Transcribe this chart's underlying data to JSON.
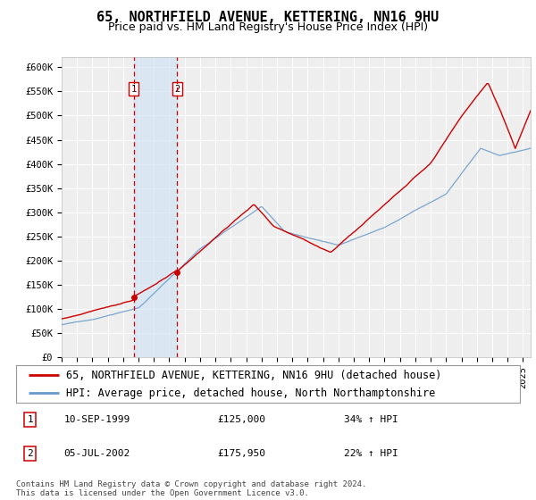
{
  "title": "65, NORTHFIELD AVENUE, KETTERING, NN16 9HU",
  "subtitle": "Price paid vs. HM Land Registry's House Price Index (HPI)",
  "ylim": [
    0,
    620000
  ],
  "yticks": [
    0,
    50000,
    100000,
    150000,
    200000,
    250000,
    300000,
    350000,
    400000,
    450000,
    500000,
    550000,
    600000
  ],
  "ytick_labels": [
    "£0",
    "£50K",
    "£100K",
    "£150K",
    "£200K",
    "£250K",
    "£300K",
    "£350K",
    "£400K",
    "£450K",
    "£500K",
    "£550K",
    "£600K"
  ],
  "background_color": "#ffffff",
  "plot_bg_color": "#eeeeee",
  "grid_color": "#ffffff",
  "legend_entries": [
    "65, NORTHFIELD AVENUE, KETTERING, NN16 9HU (detached house)",
    "HPI: Average price, detached house, North Northamptonshire"
  ],
  "legend_colors": [
    "#cc0000",
    "#6699cc"
  ],
  "transaction_labels": [
    {
      "num": "1",
      "date": "10-SEP-1999",
      "price": "£125,000",
      "change": "34% ↑ HPI"
    },
    {
      "num": "2",
      "date": "05-JUL-2002",
      "price": "£175,950",
      "change": "22% ↑ HPI"
    }
  ],
  "transactions": [
    {
      "year": 1999.69,
      "price": 125000
    },
    {
      "year": 2002.51,
      "price": 175950
    }
  ],
  "vline_color": "#cc0000",
  "vspan_color": "#d0e4f7",
  "marker_color": "#cc0000",
  "footnote": "Contains HM Land Registry data © Crown copyright and database right 2024.\nThis data is licensed under the Open Government Licence v3.0.",
  "title_fontsize": 11,
  "subtitle_fontsize": 9,
  "tick_fontsize": 7.5,
  "legend_fontsize": 8.5,
  "footnote_fontsize": 6.5,
  "xlim_start": 1995,
  "xlim_end": 2025.5
}
